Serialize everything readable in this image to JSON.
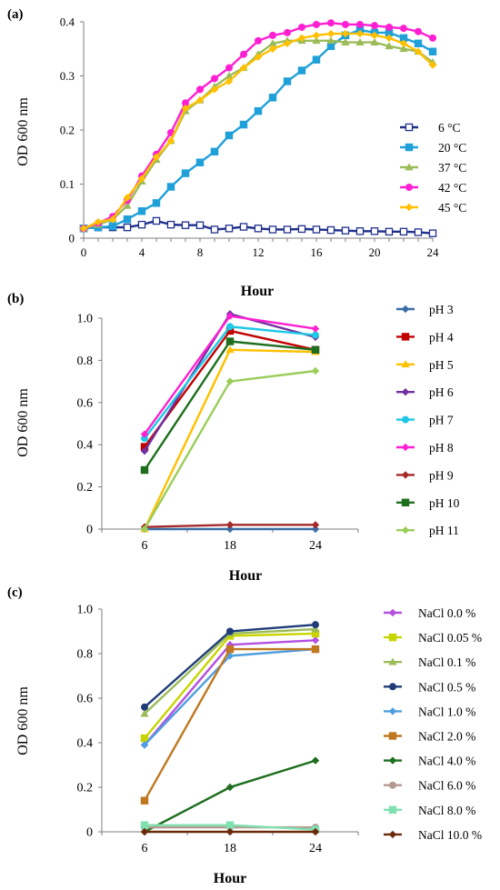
{
  "chart_data": [
    {
      "panel_label": "(a)",
      "type": "line",
      "xlabel": "Hour",
      "ylabel": "OD 600 nm",
      "xlim": [
        0,
        24
      ],
      "ylim": [
        0,
        0.4
      ],
      "xticks": [
        0,
        4,
        8,
        12,
        16,
        20,
        24
      ],
      "xtick_labels": [
        "0",
        "4",
        "8",
        "12",
        "16",
        "20",
        "24"
      ],
      "yticks": [
        0,
        0.1,
        0.2,
        0.3,
        0.4
      ],
      "ytick_labels": [
        "0",
        "0.1",
        "0.2",
        "0.3",
        "0.4"
      ],
      "grid": false,
      "legend_position": "right",
      "x": [
        0,
        1,
        2,
        3,
        4,
        5,
        6,
        7,
        8,
        9,
        10,
        11,
        12,
        13,
        14,
        15,
        16,
        17,
        18,
        19,
        20,
        21,
        22,
        23,
        24
      ],
      "series": [
        {
          "name": "6 °C",
          "color": "#1f2f8c",
          "marker": "square-open",
          "values": [
            0.018,
            0.02,
            0.02,
            0.02,
            0.025,
            0.032,
            0.025,
            0.024,
            0.024,
            0.016,
            0.018,
            0.021,
            0.018,
            0.016,
            0.016,
            0.017,
            0.016,
            0.015,
            0.014,
            0.013,
            0.013,
            0.012,
            0.012,
            0.011,
            0.009
          ]
        },
        {
          "name": "20 °C",
          "color": "#1fa0d8",
          "marker": "square",
          "values": [
            0.018,
            0.02,
            0.022,
            0.035,
            0.05,
            0.065,
            0.095,
            0.12,
            0.14,
            0.16,
            0.19,
            0.21,
            0.235,
            0.26,
            0.29,
            0.31,
            0.33,
            0.355,
            0.375,
            0.385,
            0.38,
            0.38,
            0.37,
            0.36,
            0.345
          ]
        },
        {
          "name": "37 °C",
          "color": "#9bbb59",
          "marker": "triangle",
          "values": [
            0.018,
            0.025,
            0.035,
            0.06,
            0.105,
            0.145,
            0.18,
            0.235,
            0.255,
            0.28,
            0.3,
            0.315,
            0.34,
            0.36,
            0.365,
            0.365,
            0.365,
            0.365,
            0.362,
            0.362,
            0.362,
            0.355,
            0.35,
            0.345,
            0.325
          ]
        },
        {
          "name": "42 °C",
          "color": "#ff1fd2",
          "marker": "circle",
          "values": [
            0.018,
            0.028,
            0.04,
            0.07,
            0.115,
            0.155,
            0.195,
            0.25,
            0.275,
            0.295,
            0.315,
            0.34,
            0.365,
            0.375,
            0.38,
            0.39,
            0.395,
            0.398,
            0.395,
            0.395,
            0.393,
            0.39,
            0.388,
            0.382,
            0.37
          ]
        },
        {
          "name": "45 °C",
          "color": "#ffc000",
          "marker": "diamond",
          "values": [
            0.018,
            0.03,
            0.035,
            0.075,
            0.11,
            0.15,
            0.18,
            0.24,
            0.255,
            0.275,
            0.29,
            0.315,
            0.335,
            0.35,
            0.36,
            0.37,
            0.375,
            0.378,
            0.378,
            0.378,
            0.375,
            0.37,
            0.36,
            0.345,
            0.32
          ]
        }
      ]
    },
    {
      "panel_label": "(b)",
      "type": "line",
      "xlabel": "Hour",
      "ylabel": "OD 600 nm",
      "categories": [
        "6",
        "18",
        "24"
      ],
      "ylim": [
        0,
        1.0
      ],
      "yticks": [
        0,
        0.2,
        0.4,
        0.6,
        0.8,
        1.0
      ],
      "ytick_labels": [
        "0",
        "0.2",
        "0.4",
        "0.6",
        "0.8",
        "1.0"
      ],
      "grid": false,
      "legend_position": "right",
      "series": [
        {
          "name": "pH 3",
          "color": "#3a6ea5",
          "marker": "diamond",
          "values": [
            0.0,
            0.0,
            0.0
          ]
        },
        {
          "name": "pH 4",
          "color": "#c00000",
          "marker": "square",
          "values": [
            0.39,
            0.94,
            0.85
          ]
        },
        {
          "name": "pH 5",
          "color": "#ffc000",
          "marker": "triangle",
          "values": [
            0.0,
            0.85,
            0.84
          ]
        },
        {
          "name": "pH 6",
          "color": "#7030a0",
          "marker": "diamond",
          "values": [
            0.37,
            1.02,
            0.91
          ]
        },
        {
          "name": "pH 7",
          "color": "#1ec8e6",
          "marker": "circle",
          "values": [
            0.43,
            0.96,
            0.92
          ]
        },
        {
          "name": "pH 8",
          "color": "#ff1fd2",
          "marker": "diamond",
          "values": [
            0.45,
            1.01,
            0.95
          ]
        },
        {
          "name": "pH 9",
          "color": "#a52a2a",
          "marker": "diamond",
          "values": [
            0.01,
            0.02,
            0.02
          ]
        },
        {
          "name": "pH 10",
          "color": "#1e6e1e",
          "marker": "square",
          "values": [
            0.28,
            0.89,
            0.85
          ]
        },
        {
          "name": "pH 11",
          "color": "#9acd5a",
          "marker": "diamond",
          "values": [
            0.0,
            0.7,
            0.75
          ]
        }
      ]
    },
    {
      "panel_label": "(c)",
      "type": "line",
      "xlabel": "Hour",
      "ylabel": "OD 600 nm",
      "categories": [
        "6",
        "18",
        "24"
      ],
      "ylim": [
        0,
        1.0
      ],
      "yticks": [
        0,
        0.2,
        0.4,
        0.6,
        0.8,
        1.0
      ],
      "ytick_labels": [
        "0",
        "0.2",
        "0.4",
        "0.6",
        "0.8",
        "1.0"
      ],
      "grid": false,
      "legend_position": "right",
      "series": [
        {
          "name": "NaCl 0.0 %",
          "color": "#b44fe0",
          "marker": "diamond",
          "values": [
            0.39,
            0.84,
            0.86
          ]
        },
        {
          "name": "NaCl 0.05 %",
          "color": "#c8d400",
          "marker": "square",
          "values": [
            0.42,
            0.88,
            0.89
          ]
        },
        {
          "name": "NaCl 0.1 %",
          "color": "#9bbb59",
          "marker": "triangle",
          "values": [
            0.53,
            0.89,
            0.91
          ]
        },
        {
          "name": "NaCl 0.5 %",
          "color": "#1f3c78",
          "marker": "circle",
          "values": [
            0.56,
            0.9,
            0.93
          ]
        },
        {
          "name": "NaCl 1.0 %",
          "color": "#4f9ee0",
          "marker": "diamond",
          "values": [
            0.39,
            0.79,
            0.82
          ]
        },
        {
          "name": "NaCl 2.0 %",
          "color": "#c07820",
          "marker": "square",
          "values": [
            0.14,
            0.82,
            0.82
          ]
        },
        {
          "name": "NaCl 4.0 %",
          "color": "#1e6e1e",
          "marker": "diamond",
          "values": [
            0.0,
            0.2,
            0.32
          ]
        },
        {
          "name": "NaCl 6.0 %",
          "color": "#b49a90",
          "marker": "circle",
          "values": [
            0.02,
            0.02,
            0.02
          ]
        },
        {
          "name": "NaCl 8.0 %",
          "color": "#80e0b0",
          "marker": "square",
          "values": [
            0.03,
            0.03,
            0.01
          ]
        },
        {
          "name": "NaCl 10.0 %",
          "color": "#6b2a0a",
          "marker": "diamond",
          "values": [
            0.0,
            0.0,
            0.0
          ]
        }
      ]
    }
  ]
}
